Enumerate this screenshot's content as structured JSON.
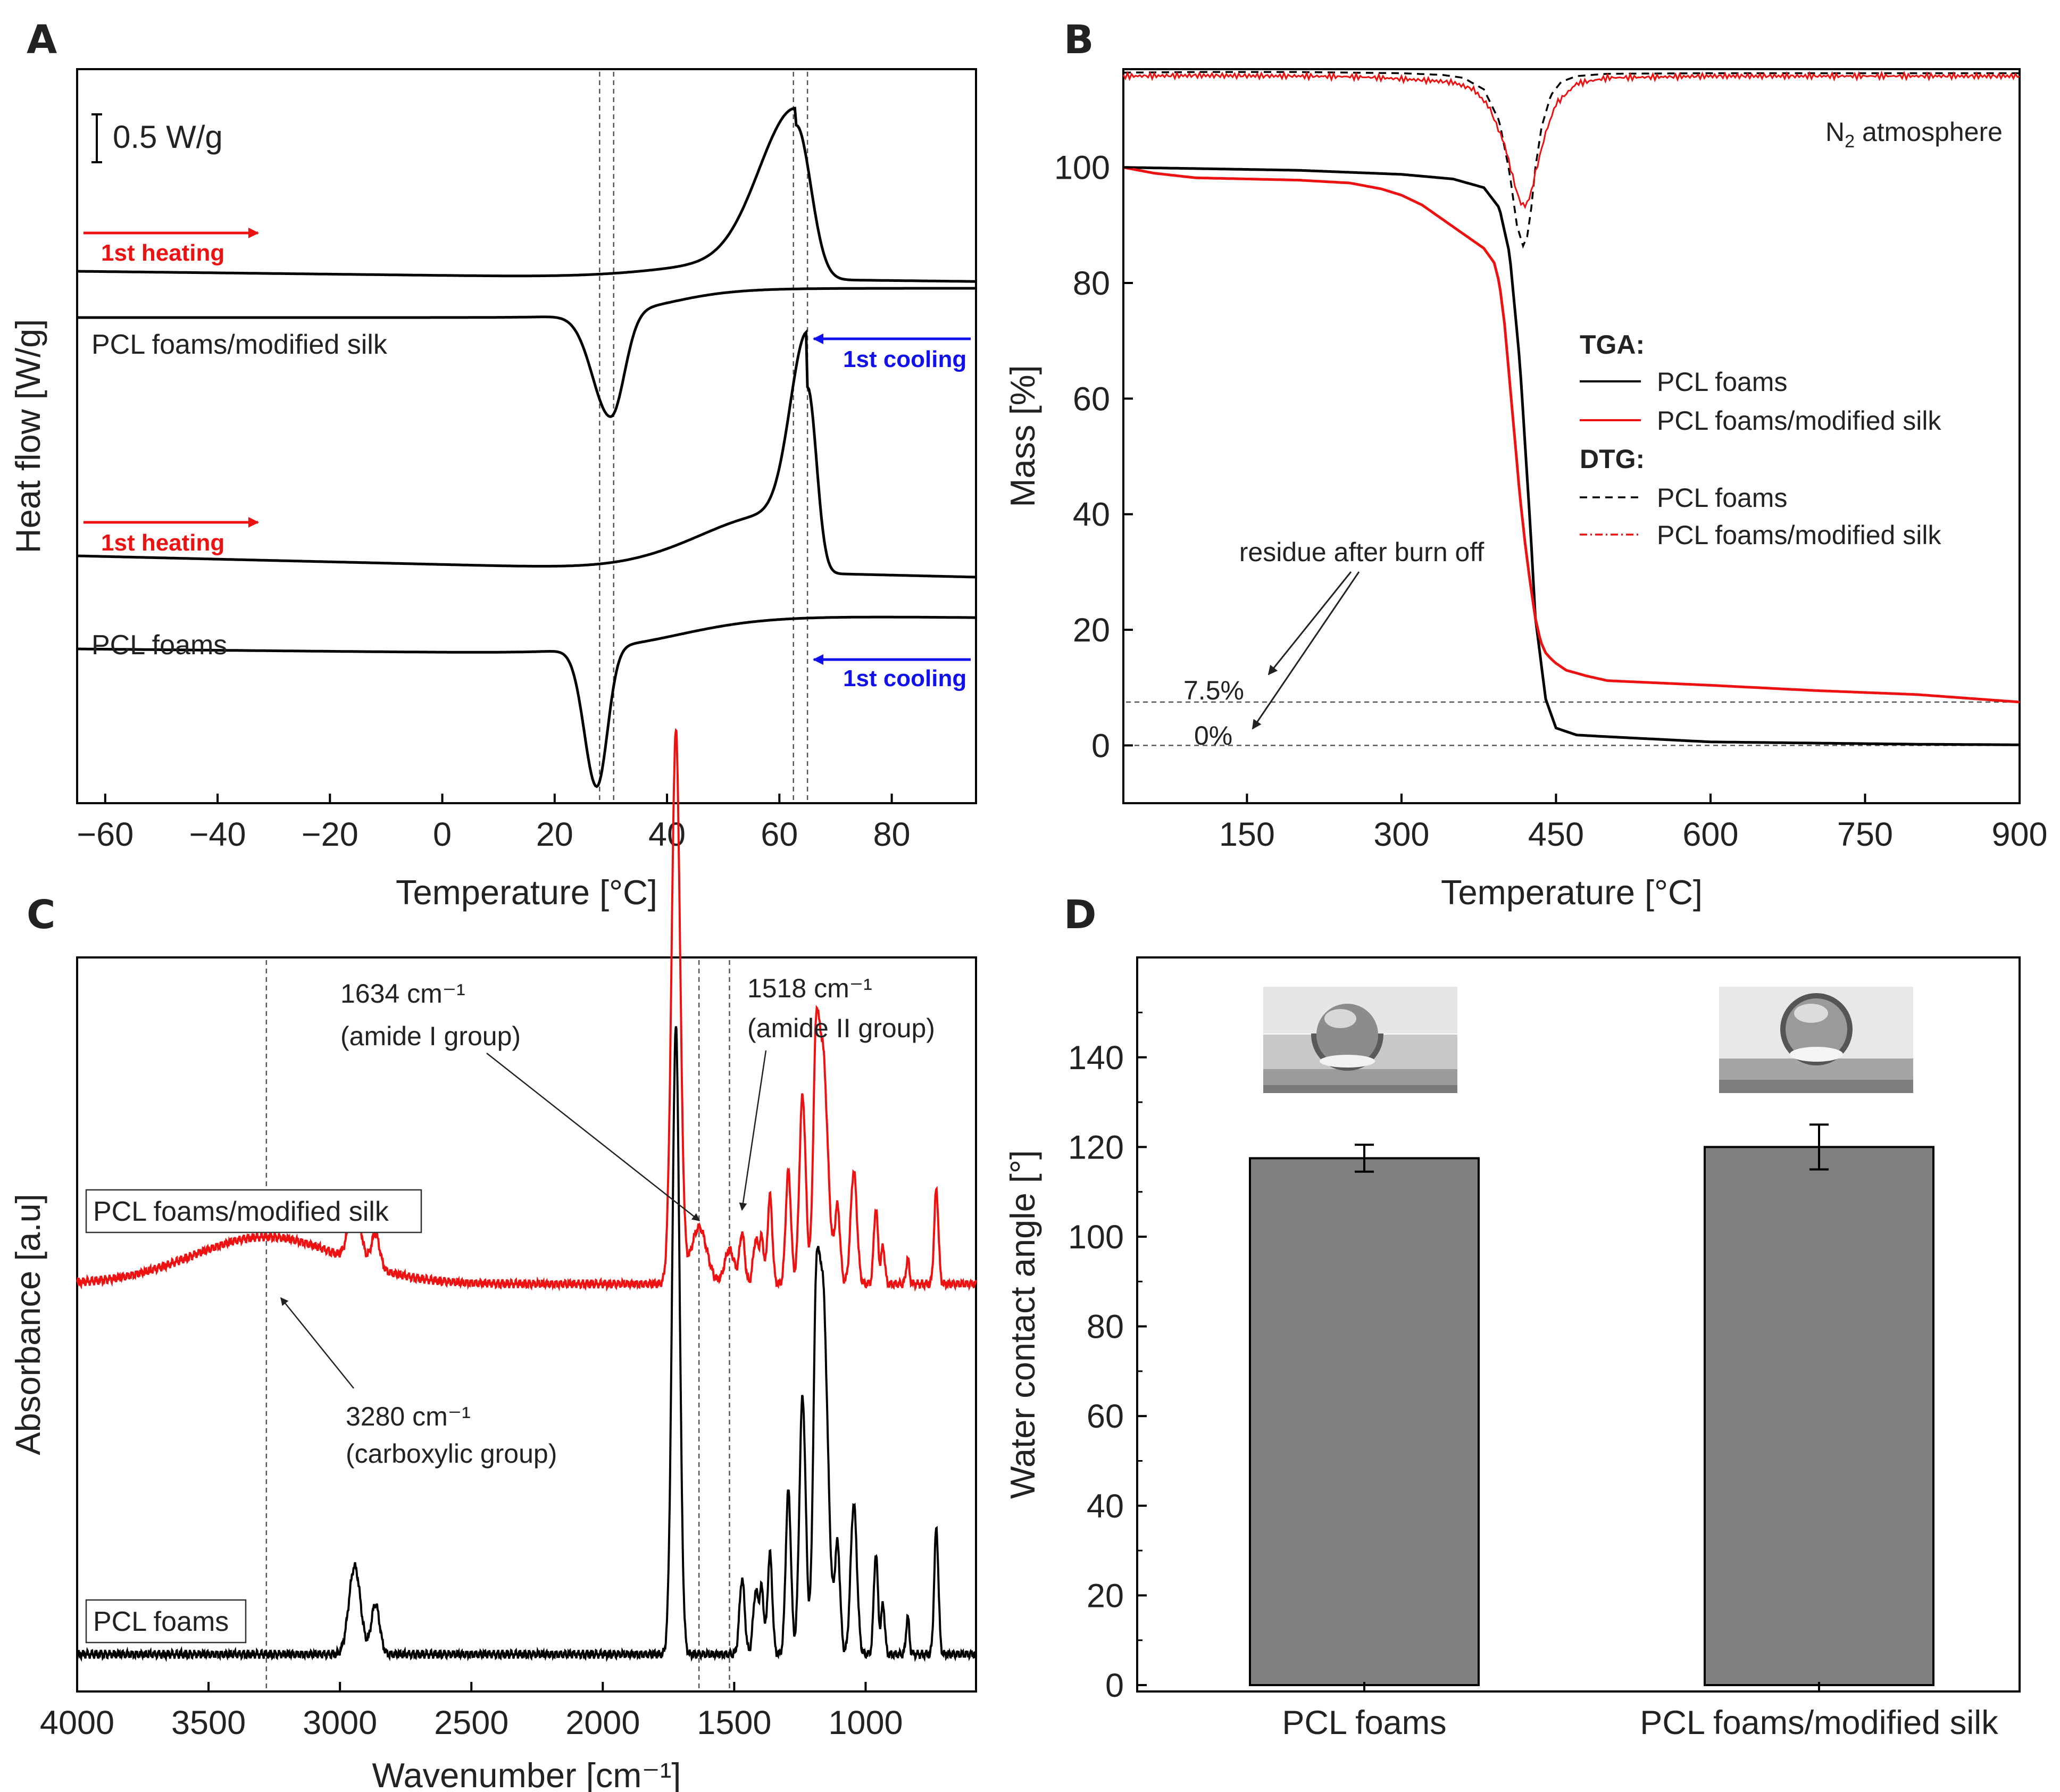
{
  "panel_labels": {
    "a": "A",
    "b": "B",
    "c": "C",
    "d": "D"
  },
  "chart_data": [
    {
      "panel": "A",
      "type": "line",
      "title": "",
      "xlabel": "Temperature [°C]",
      "ylabel": "Heat flow [W/g]",
      "xlim": [
        -65,
        95
      ],
      "xticks": [
        "−60",
        "−40",
        "−20",
        "0",
        "20",
        "40",
        "60",
        "80"
      ],
      "xtick_values": [
        -60,
        -40,
        -20,
        0,
        20,
        40,
        60,
        80
      ],
      "scale_bar": "0.5 W/g",
      "guide_lines_x": [
        28,
        30.5,
        62.5,
        65
      ],
      "series": [
        {
          "name": "PCL foams/modified silk",
          "label": "PCL foams/modified silk",
          "heating_label": "1st heating",
          "cooling_label": "1st cooling",
          "melting_peak": 63,
          "crystallization_peak": 30,
          "color": "#000000"
        },
        {
          "name": "PCL foams",
          "label": "PCL foams",
          "heating_label": "1st heating",
          "cooling_label": "1st cooling",
          "melting_peak": 65,
          "crystallization_peak": 27.5,
          "color": "#000000"
        }
      ]
    },
    {
      "panel": "B",
      "type": "line",
      "xlabel": "Temperature [°C]",
      "ylabel": "Mass [%]",
      "xlim": [
        30,
        900
      ],
      "ylim": [
        -10,
        117
      ],
      "xticks": [
        150,
        300,
        450,
        600,
        750,
        900
      ],
      "yticks": [
        0,
        20,
        40,
        60,
        80,
        100
      ],
      "atmosphere": "N2 atmosphere",
      "legend": {
        "tga_title": "TGA:",
        "dtg_title": "DTG:",
        "tga_foams": "PCL foams",
        "tga_silk": "PCL foams/modified silk",
        "dtg_foams": "PCL foams",
        "dtg_silk": "PCL foams/modified silk"
      },
      "annotation": "residue after burn off",
      "residue_labels": [
        "7.5%",
        "0%"
      ],
      "residue_values": [
        7.5,
        0
      ],
      "series": [
        {
          "name": "TGA PCL foams",
          "color": "#000000",
          "x": [
            30,
            100,
            200,
            300,
            350,
            380,
            395,
            405,
            415,
            420,
            425,
            430,
            440,
            450,
            470,
            500,
            600,
            700,
            800,
            900
          ],
          "y": [
            100,
            99.8,
            99.5,
            98.8,
            98,
            96.5,
            93,
            85,
            66,
            52,
            38,
            22,
            8,
            3,
            1.8,
            1.5,
            0.6,
            0.4,
            0.2,
            0.1
          ]
        },
        {
          "name": "TGA PCL foams/modified silk",
          "color": "#ee1111",
          "x": [
            30,
            60,
            100,
            150,
            200,
            250,
            280,
            300,
            320,
            340,
            360,
            380,
            390,
            395,
            400,
            405,
            410,
            415,
            420,
            425,
            430,
            435,
            440,
            445,
            450,
            460,
            480,
            500,
            600,
            700,
            800,
            900
          ],
          "y": [
            100,
            99,
            98.2,
            98,
            97.8,
            97.3,
            96.3,
            95.2,
            93.5,
            91,
            88.5,
            86,
            83.5,
            80,
            73,
            63,
            53,
            43,
            35,
            28,
            22,
            18,
            16,
            15,
            14.2,
            13,
            12,
            11.2,
            10.4,
            9.5,
            8.8,
            7.5
          ]
        },
        {
          "name": "DTG PCL foams",
          "color": "#000000",
          "dash": "dashed",
          "x": [
            30,
            100,
            200,
            300,
            340,
            360,
            380,
            395,
            405,
            412,
            418,
            422,
            426,
            430,
            436,
            445,
            455,
            470,
            500,
            600,
            700,
            800,
            900
          ],
          "y": [
            116.4,
            116.5,
            116.5,
            116.3,
            116,
            115.5,
            113.5,
            108,
            99,
            90,
            86.4,
            88,
            93,
            100,
            107,
            112.5,
            114.8,
            115.8,
            116.2,
            116.3,
            116.3,
            116.3,
            116.3
          ]
        },
        {
          "name": "DTG PCL foams/modified silk",
          "color": "#ee1111",
          "dash": "dashdot",
          "x": [
            30,
            100,
            200,
            250,
            280,
            300,
            330,
            350,
            370,
            385,
            400,
            410,
            415,
            420,
            425,
            430,
            440,
            450,
            470,
            500,
            600,
            700,
            800,
            900
          ],
          "y": [
            115.8,
            115.9,
            115.8,
            115.7,
            115.5,
            115.3,
            115,
            114.7,
            113.5,
            110.5,
            104,
            97,
            94,
            93.3,
            95,
            99,
            106,
            111,
            114.5,
            115.5,
            115.8,
            115.8,
            115.8,
            115.8
          ]
        }
      ]
    },
    {
      "panel": "C",
      "type": "line",
      "xlabel": "Wavenumber [cm⁻¹]",
      "ylabel": "Absorbance [a.u]",
      "xlim": [
        4000,
        580
      ],
      "xticks": [
        4000,
        3500,
        3000,
        2500,
        2000,
        1500,
        1000
      ],
      "guide_lines_x": [
        3280,
        1634,
        1518
      ],
      "annotations": [
        {
          "line1": "1634 cm⁻¹",
          "line2": "(amide I group)",
          "x": 1634
        },
        {
          "line1": "1518 cm⁻¹",
          "line2": "(amide II group)",
          "x": 1518
        },
        {
          "line1": "3280 cm⁻¹",
          "line2": "(carboxylic group)",
          "x": 3280
        }
      ],
      "series": [
        {
          "name": "PCL foams/modified silk",
          "label": "PCL foams/modified silk",
          "color": "#ee1111",
          "baseline": 0.59,
          "peaks": [
            [
              3280,
              0.075,
              280
            ],
            [
              2944,
              0.1,
              22
            ],
            [
              2865,
              0.055,
              16
            ],
            [
              1722,
              0.88,
              16
            ],
            [
              1634,
              0.09,
              30
            ],
            [
              1518,
              0.055,
              18
            ],
            [
              1470,
              0.08,
              10
            ],
            [
              1418,
              0.07,
              10
            ],
            [
              1395,
              0.07,
              8
            ],
            [
              1364,
              0.14,
              9
            ],
            [
              1294,
              0.18,
              10
            ],
            [
              1240,
              0.3,
              12
            ],
            [
              1190,
              0.24,
              10
            ],
            [
              1165,
              0.38,
              20
            ],
            [
              1107,
              0.12,
              10
            ],
            [
              1045,
              0.18,
              12
            ],
            [
              961,
              0.12,
              8
            ],
            [
              934,
              0.06,
              7
            ],
            [
              840,
              0.04,
              6
            ],
            [
              731,
              0.15,
              8
            ]
          ]
        },
        {
          "name": "PCL foams",
          "label": "PCL foams",
          "color": "#000000",
          "baseline": 0.0,
          "peaks": [
            [
              2944,
              0.14,
              22
            ],
            [
              2865,
              0.08,
              16
            ],
            [
              1722,
              1.0,
              14
            ],
            [
              1470,
              0.12,
              10
            ],
            [
              1418,
              0.1,
              10
            ],
            [
              1395,
              0.1,
              8
            ],
            [
              1364,
              0.16,
              9
            ],
            [
              1294,
              0.26,
              10
            ],
            [
              1240,
              0.41,
              12
            ],
            [
              1190,
              0.32,
              10
            ],
            [
              1165,
              0.6,
              20
            ],
            [
              1107,
              0.17,
              10
            ],
            [
              1045,
              0.24,
              12
            ],
            [
              961,
              0.16,
              8
            ],
            [
              934,
              0.08,
              7
            ],
            [
              840,
              0.06,
              6
            ],
            [
              731,
              0.2,
              8
            ]
          ]
        }
      ]
    },
    {
      "panel": "D",
      "type": "bar",
      "xlabel": "",
      "ylabel": "Water contact angle [°]",
      "ylim": [
        0,
        160
      ],
      "yticks": [
        0,
        20,
        40,
        60,
        80,
        100,
        120,
        140
      ],
      "categories": [
        "PCL foams",
        "PCL foams/modified silk"
      ],
      "values": [
        117.5,
        120
      ],
      "errors": [
        3,
        5
      ],
      "bar_color": "#808080"
    }
  ]
}
